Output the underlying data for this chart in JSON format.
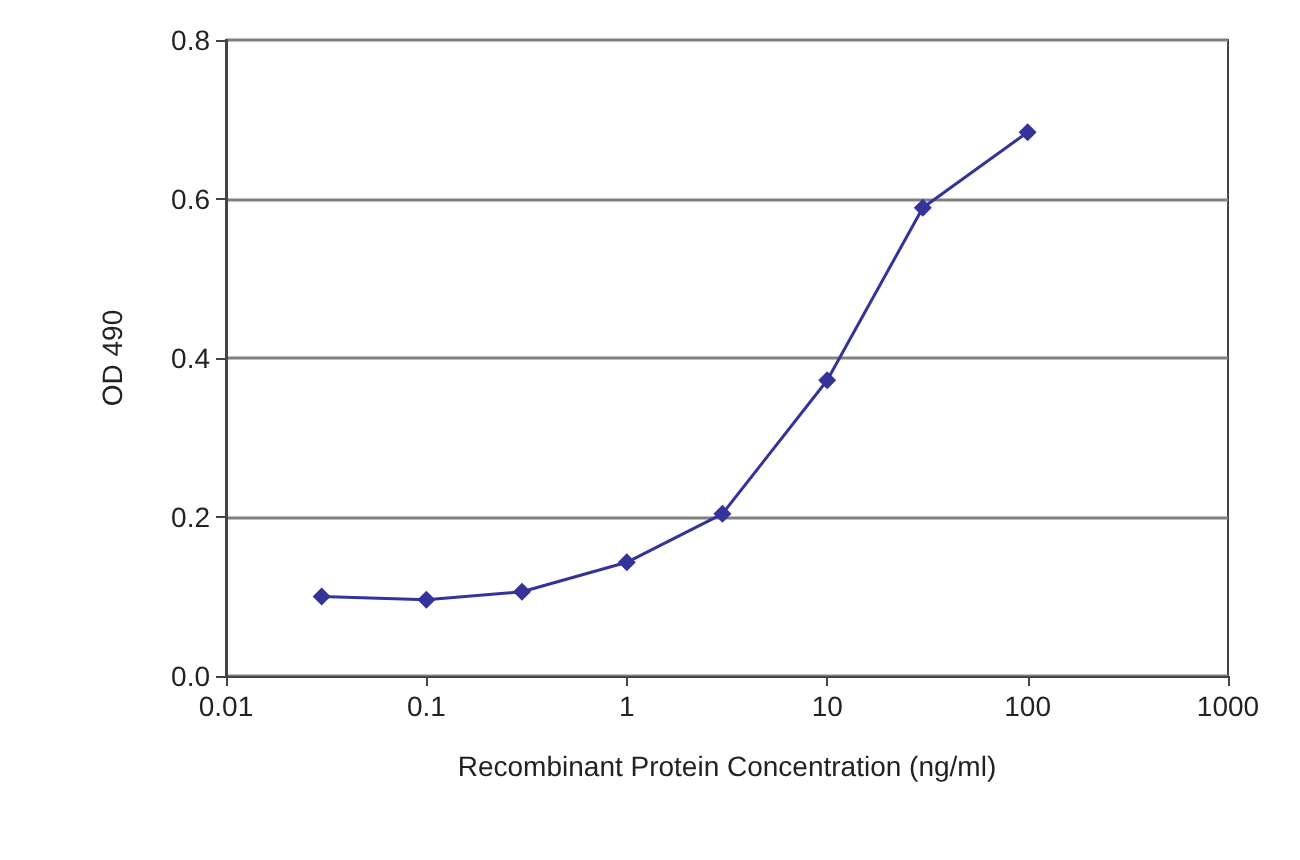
{
  "chart_data": {
    "type": "line",
    "xlabel": "Recombinant Protein Concentration (ng/ml)",
    "ylabel": "OD 490",
    "x": [
      0.03,
      0.1,
      0.3,
      1,
      3,
      10,
      30,
      100
    ],
    "series": [
      {
        "color": "#333399",
        "values": [
          0.1,
          0.096,
          0.106,
          0.143,
          0.204,
          0.372,
          0.589,
          0.684
        ]
      }
    ],
    "log": "x",
    "xlim": [
      0.01,
      1000
    ],
    "xticks": [
      0.01,
      0.1,
      1,
      10,
      100,
      1000
    ],
    "ylim": [
      0,
      0.8
    ],
    "yticks": [
      {
        "value": 0,
        "label": "0.0"
      },
      {
        "value": 0.2,
        "label": "0.2"
      },
      {
        "value": 0.4,
        "label": "0.4"
      },
      {
        "value": 0.6,
        "label": "0.6"
      },
      {
        "value": 0.8,
        "label": "0.8"
      }
    ],
    "grid": "y",
    "marker": "diamond",
    "line_style": "solid"
  }
}
